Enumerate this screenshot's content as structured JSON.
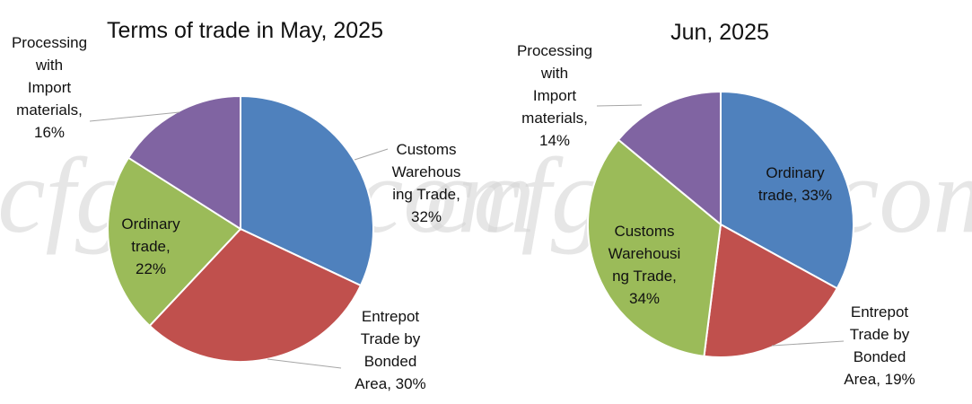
{
  "watermark": "ccfgroup.com",
  "chart_data": [
    {
      "type": "pie",
      "title": "Terms of trade in May, 2025",
      "slices": [
        {
          "name": "Customs Warehousing Trade",
          "value": 32,
          "pct": "32%",
          "color": "#4f81bd",
          "label_lines": [
            "Customs",
            "Warehous",
            "ing Trade,",
            "32%"
          ]
        },
        {
          "name": "Entrepot Trade by Bonded Area",
          "value": 30,
          "pct": "30%",
          "color": "#c0504d",
          "label_lines": [
            "Entrepot",
            "Trade by",
            "Bonded",
            "Area, 30%"
          ]
        },
        {
          "name": "Ordinary trade",
          "value": 22,
          "pct": "22%",
          "color": "#9bbb59",
          "label_lines": [
            "Ordinary",
            "trade,",
            "22%"
          ]
        },
        {
          "name": "Processing with Import materials",
          "value": 16,
          "pct": "16%",
          "color": "#8064a2",
          "label_lines": [
            "Processing",
            "with",
            "Import",
            "materials,",
            "16%"
          ]
        }
      ]
    },
    {
      "type": "pie",
      "title": "Jun, 2025",
      "slices": [
        {
          "name": "Ordinary trade",
          "value": 33,
          "pct": "33%",
          "color": "#4f81bd",
          "label_lines": [
            "Ordinary",
            "trade, 33%"
          ]
        },
        {
          "name": "Entrepot Trade by Bonded Area",
          "value": 19,
          "pct": "19%",
          "color": "#c0504d",
          "label_lines": [
            "Entrepot",
            "Trade by",
            "Bonded",
            "Area, 19%"
          ]
        },
        {
          "name": "Customs Warehousing Trade",
          "value": 34,
          "pct": "34%",
          "color": "#9bbb59",
          "label_lines": [
            "Customs",
            "Warehousi",
            "ng Trade,",
            "34%"
          ]
        },
        {
          "name": "Processing with Import materials",
          "value": 14,
          "pct": "14%",
          "color": "#8064a2",
          "label_lines": [
            "Processing",
            "with",
            "Import",
            "materials,",
            "14%"
          ]
        }
      ]
    }
  ]
}
